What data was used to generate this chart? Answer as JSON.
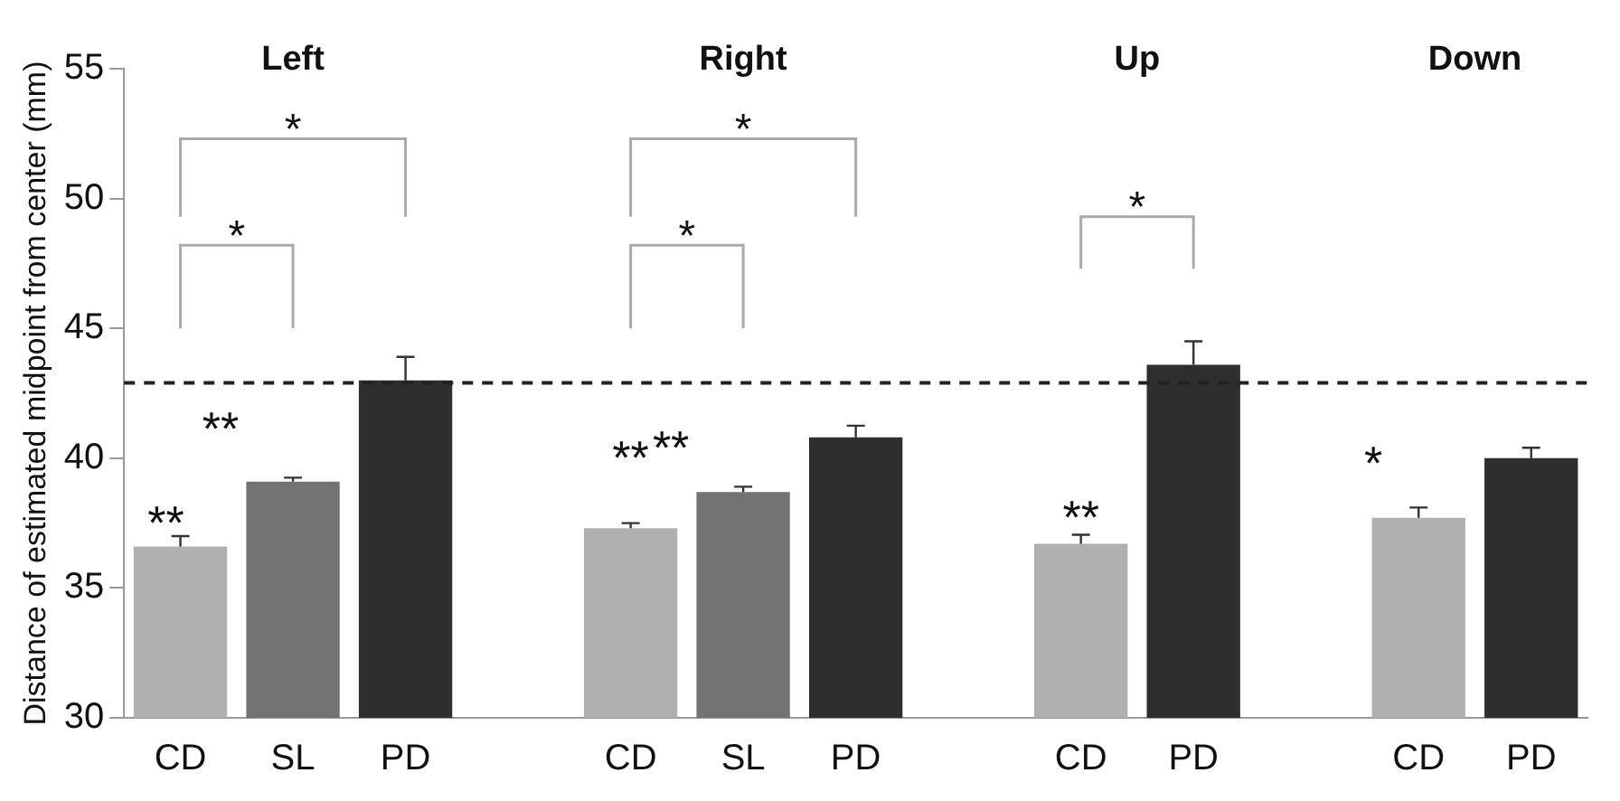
{
  "chart_data": {
    "type": "bar",
    "categories": [
      "CD",
      "SL",
      "PD",
      null,
      "CD",
      "SL",
      "PD",
      null,
      "CD",
      "PD",
      null,
      "CD",
      "PD"
    ],
    "values": [
      36.6,
      39.1,
      43.0,
      null,
      37.3,
      38.7,
      40.8,
      null,
      36.7,
      43.6,
      null,
      37.7,
      40.0
    ],
    "errors": [
      0.4,
      0.15,
      0.9,
      null,
      0.2,
      0.2,
      0.45,
      null,
      0.35,
      0.9,
      null,
      0.4,
      0.4
    ],
    "colors": [
      "#b0b0b0",
      "#737373",
      "#2e2e2e",
      "#ffffff",
      "#b0b0b0",
      "#737373",
      "#2e2e2e",
      "#ffffff",
      "#b0b0b0",
      "#2e2e2e",
      "#ffffff",
      "#b0b0b0",
      "#2e2e2e"
    ],
    "ylabel": "Distance of estimated midpoint from center (mm)",
    "ylim": [
      30,
      55
    ],
    "yticks": [
      30,
      35,
      40,
      45,
      50,
      55
    ],
    "ref_lines": [
      {
        "axis": "y",
        "value": 42.9,
        "line_style": "dashed",
        "color": "#222222"
      }
    ],
    "annotations": [
      "Left",
      "Right",
      "Up",
      "Down",
      "*",
      "*",
      "*",
      "*",
      "*",
      "**",
      "**",
      "**",
      "**",
      "**",
      "*"
    ]
  }
}
